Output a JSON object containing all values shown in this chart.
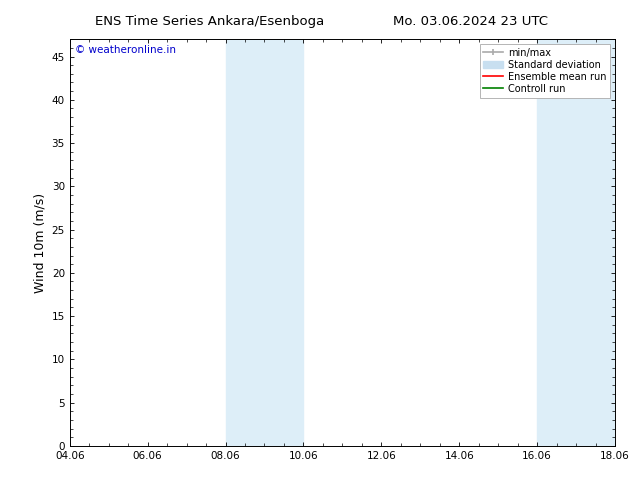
{
  "title_left": "ENS Time Series Ankara/Esenboga",
  "title_right": "Mo. 03.06.2024 23 UTC",
  "ylabel": "Wind 10m (m/s)",
  "xlabel_ticks": [
    "04.06",
    "06.06",
    "08.06",
    "10.06",
    "12.06",
    "14.06",
    "16.06",
    "18.06"
  ],
  "x_tick_positions": [
    0,
    2,
    4,
    6,
    8,
    10,
    12,
    14
  ],
  "xlim": [
    0,
    14
  ],
  "ylim": [
    0,
    47
  ],
  "yticks": [
    0,
    5,
    10,
    15,
    20,
    25,
    30,
    35,
    40,
    45
  ],
  "shaded_regions": [
    {
      "xstart": 4.0,
      "xend": 6.0,
      "color": "#ddeef8"
    },
    {
      "xstart": 12.0,
      "xend": 14.0,
      "color": "#ddeef8"
    }
  ],
  "watermark_text": "© weatheronline.in",
  "watermark_color": "#0000cc",
  "bg_color": "#ffffff",
  "plot_bg_color": "#ffffff",
  "tick_color": "#000000",
  "spine_color": "#000000",
  "title_fontsize": 9.5,
  "axis_fontsize": 9,
  "tick_fontsize": 7.5,
  "legend_fontsize": 7,
  "watermark_fontsize": 7.5,
  "minmax_color": "#aaaaaa",
  "std_color": "#c8dff0",
  "ensemble_color": "red",
  "control_color": "green"
}
